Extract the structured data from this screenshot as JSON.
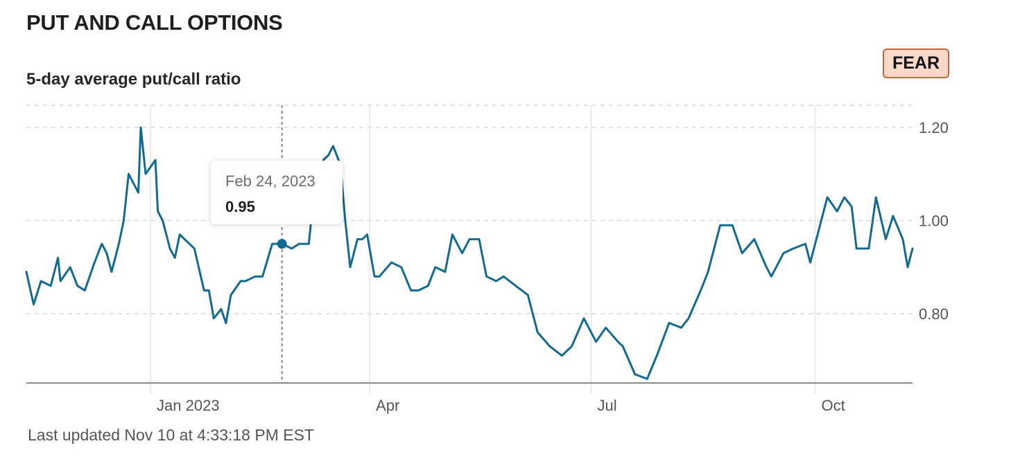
{
  "header": {
    "title": "PUT AND CALL OPTIONS"
  },
  "badge": {
    "label": "FEAR",
    "fill_color": "#fbd9c9",
    "border_color": "#c8633a"
  },
  "footer": {
    "text": "Last updated Nov 10 at 4:33:18 PM EST"
  },
  "tooltip": {
    "date": "Feb 24, 2023",
    "value": "0.95"
  },
  "chart_data": {
    "type": "line",
    "title": "5-day average put/call ratio",
    "xlabel": "",
    "ylabel": "",
    "x_tick_labels": [
      "Jan 2023",
      "Apr",
      "Jul",
      "Oct"
    ],
    "y_ticks": [
      0.8,
      1.0,
      1.2
    ],
    "y_tick_labels": [
      "0.80",
      "1.00",
      "1.20"
    ],
    "x_range": [
      "2022-11-11",
      "2023-11-10"
    ],
    "y_range": [
      0.65,
      1.25
    ],
    "grid": true,
    "line_color": "#0f6a94",
    "highlight": {
      "date": "2023-02-24",
      "value": 0.95
    },
    "series": [
      {
        "x": [
          "2022-11-11",
          "2022-11-14",
          "2022-11-17",
          "2022-11-21",
          "2022-11-24",
          "2022-11-25",
          "2022-11-29",
          "2022-12-02",
          "2022-12-05",
          "2022-12-09",
          "2022-12-12",
          "2022-12-14",
          "2022-12-16",
          "2022-12-19",
          "2022-12-21",
          "2022-12-23",
          "2022-12-27",
          "2022-12-28",
          "2022-12-30",
          "2023-01-03",
          "2023-01-04",
          "2023-01-06",
          "2023-01-09",
          "2023-01-11",
          "2023-01-13",
          "2023-01-17",
          "2023-01-19",
          "2023-01-23",
          "2023-01-25",
          "2023-01-27",
          "2023-01-30",
          "2023-02-01",
          "2023-02-03",
          "2023-02-07",
          "2023-02-09",
          "2023-02-13",
          "2023-02-16",
          "2023-02-20",
          "2023-02-24",
          "2023-02-28",
          "2023-03-03",
          "2023-03-07",
          "2023-03-09",
          "2023-03-13",
          "2023-03-15",
          "2023-03-17",
          "2023-03-20",
          "2023-03-22",
          "2023-03-24",
          "2023-03-27",
          "2023-03-29",
          "2023-03-31",
          "2023-04-03",
          "2023-04-05",
          "2023-04-10",
          "2023-04-14",
          "2023-04-18",
          "2023-04-21",
          "2023-04-25",
          "2023-04-28",
          "2023-05-02",
          "2023-05-05",
          "2023-05-09",
          "2023-05-12",
          "2023-05-16",
          "2023-05-19",
          "2023-05-23",
          "2023-05-26",
          "2023-05-31",
          "2023-06-05",
          "2023-06-09",
          "2023-06-14",
          "2023-06-19",
          "2023-06-23",
          "2023-06-28",
          "2023-07-03",
          "2023-07-07",
          "2023-07-12",
          "2023-07-14",
          "2023-07-19",
          "2023-07-24",
          "2023-07-28",
          "2023-08-02",
          "2023-08-07",
          "2023-08-10",
          "2023-08-15",
          "2023-08-18",
          "2023-08-23",
          "2023-08-28",
          "2023-09-01",
          "2023-09-06",
          "2023-09-11",
          "2023-09-13",
          "2023-09-18",
          "2023-09-22",
          "2023-09-27",
          "2023-09-29",
          "2023-10-02",
          "2023-10-06",
          "2023-10-10",
          "2023-10-13",
          "2023-10-16",
          "2023-10-18",
          "2023-10-23",
          "2023-10-26",
          "2023-10-30",
          "2023-11-02",
          "2023-11-06",
          "2023-11-08",
          "2023-11-10"
        ],
        "values": [
          0.89,
          0.82,
          0.87,
          0.86,
          0.92,
          0.87,
          0.9,
          0.86,
          0.85,
          0.91,
          0.95,
          0.93,
          0.89,
          0.95,
          1.0,
          1.1,
          1.06,
          1.2,
          1.1,
          1.13,
          1.02,
          1.0,
          0.94,
          0.92,
          0.97,
          0.95,
          0.94,
          0.85,
          0.85,
          0.79,
          0.81,
          0.78,
          0.84,
          0.87,
          0.87,
          0.88,
          0.88,
          0.95,
          0.95,
          0.94,
          0.95,
          0.95,
          1.05,
          1.13,
          1.14,
          1.16,
          1.12,
          1.0,
          0.9,
          0.96,
          0.96,
          0.97,
          0.88,
          0.88,
          0.91,
          0.9,
          0.85,
          0.85,
          0.86,
          0.9,
          0.89,
          0.97,
          0.93,
          0.96,
          0.96,
          0.88,
          0.87,
          0.88,
          0.86,
          0.84,
          0.76,
          0.73,
          0.71,
          0.73,
          0.79,
          0.74,
          0.77,
          0.74,
          0.73,
          0.67,
          0.66,
          0.71,
          0.78,
          0.77,
          0.79,
          0.85,
          0.89,
          0.99,
          0.99,
          0.93,
          0.96,
          0.9,
          0.88,
          0.93,
          0.94,
          0.95,
          0.91,
          0.97,
          1.05,
          1.02,
          1.05,
          1.03,
          0.94,
          0.94,
          1.05,
          0.96,
          1.01,
          0.96,
          0.9,
          0.94
        ]
      }
    ]
  }
}
